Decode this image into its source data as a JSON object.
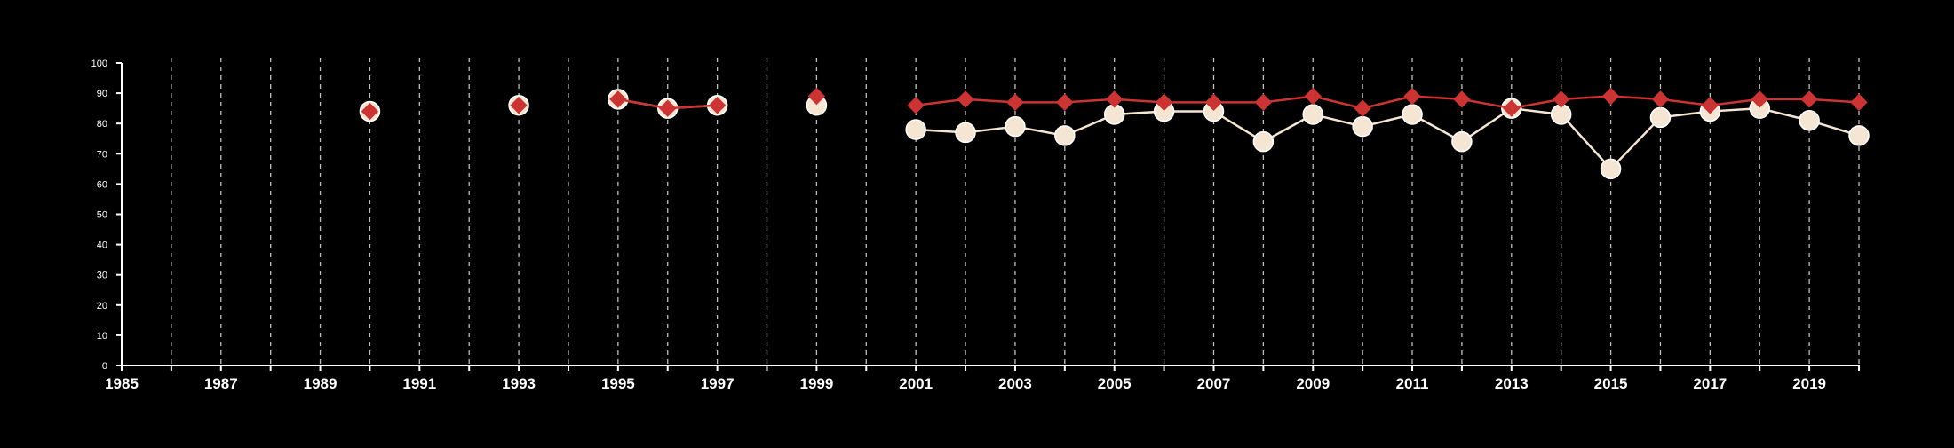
{
  "colors": {
    "background": "#000000",
    "axis": "#ffffff",
    "grid": "#bfbfbf",
    "series_red": "#cc3333",
    "series_cream": "#f5e6d3",
    "marker_edge": "#ffffff"
  },
  "chart_data": {
    "type": "line",
    "title": "",
    "xlabel": "",
    "ylabel": "",
    "xlim": [
      1985,
      2020
    ],
    "ylim": [
      0,
      100
    ],
    "x_ticks": [
      1985,
      1986,
      1987,
      1988,
      1989,
      1990,
      1991,
      1992,
      1993,
      1994,
      1995,
      1996,
      1997,
      1998,
      1999,
      2000,
      2001,
      2002,
      2003,
      2004,
      2005,
      2006,
      2007,
      2008,
      2009,
      2010,
      2011,
      2012,
      2013,
      2014,
      2015,
      2016,
      2017,
      2018,
      2019,
      2020
    ],
    "x_tick_labels": [
      "1985",
      "",
      "1987",
      "",
      "1989",
      "",
      "1991",
      "",
      "1993",
      "",
      "1995",
      "",
      "1997",
      "",
      "1999",
      "",
      "2001",
      "",
      "2003",
      "",
      "2005",
      "",
      "2007",
      "",
      "2009",
      "",
      "2011",
      "",
      "2013",
      "",
      "2015",
      "",
      "2017",
      "",
      "2019",
      ""
    ],
    "y_ticks": [
      0,
      10,
      20,
      30,
      40,
      50,
      60,
      70,
      80,
      90,
      100
    ],
    "y_tick_labels": [
      "0",
      "10",
      "20",
      "30",
      "40",
      "50",
      "60",
      "70",
      "80",
      "90",
      "100"
    ],
    "grid": "vertical dashed",
    "legend": "none",
    "series": [
      {
        "marker": "circle",
        "color_key": "series_cream",
        "points": [
          [
            1990,
            84
          ],
          [
            1993,
            86
          ],
          [
            1995,
            88
          ],
          [
            1996,
            85
          ],
          [
            1997,
            86
          ],
          [
            1999,
            86
          ],
          [
            2001,
            78
          ],
          [
            2002,
            77
          ],
          [
            2003,
            79
          ],
          [
            2004,
            76
          ],
          [
            2005,
            83
          ],
          [
            2006,
            84
          ],
          [
            2007,
            84
          ],
          [
            2008,
            74
          ],
          [
            2009,
            83
          ],
          [
            2010,
            79
          ],
          [
            2011,
            83
          ],
          [
            2012,
            74
          ],
          [
            2013,
            85
          ],
          [
            2014,
            83
          ],
          [
            2015,
            65
          ],
          [
            2016,
            82
          ],
          [
            2017,
            84
          ],
          [
            2018,
            85
          ],
          [
            2019,
            81
          ],
          [
            2020,
            76
          ]
        ]
      },
      {
        "marker": "diamond",
        "color_key": "series_red",
        "points": [
          [
            1990,
            84
          ],
          [
            1993,
            86
          ],
          [
            1995,
            88
          ],
          [
            1996,
            85
          ],
          [
            1997,
            86
          ],
          [
            1999,
            89
          ],
          [
            2001,
            86
          ],
          [
            2002,
            88
          ],
          [
            2003,
            87
          ],
          [
            2004,
            87
          ],
          [
            2005,
            88
          ],
          [
            2006,
            87
          ],
          [
            2007,
            87
          ],
          [
            2008,
            87
          ],
          [
            2009,
            89
          ],
          [
            2010,
            85
          ],
          [
            2011,
            89
          ],
          [
            2012,
            88
          ],
          [
            2013,
            85
          ],
          [
            2014,
            88
          ],
          [
            2015,
            89
          ],
          [
            2016,
            88
          ],
          [
            2017,
            86
          ],
          [
            2018,
            88
          ],
          [
            2019,
            88
          ],
          [
            2020,
            87
          ]
        ]
      }
    ]
  }
}
